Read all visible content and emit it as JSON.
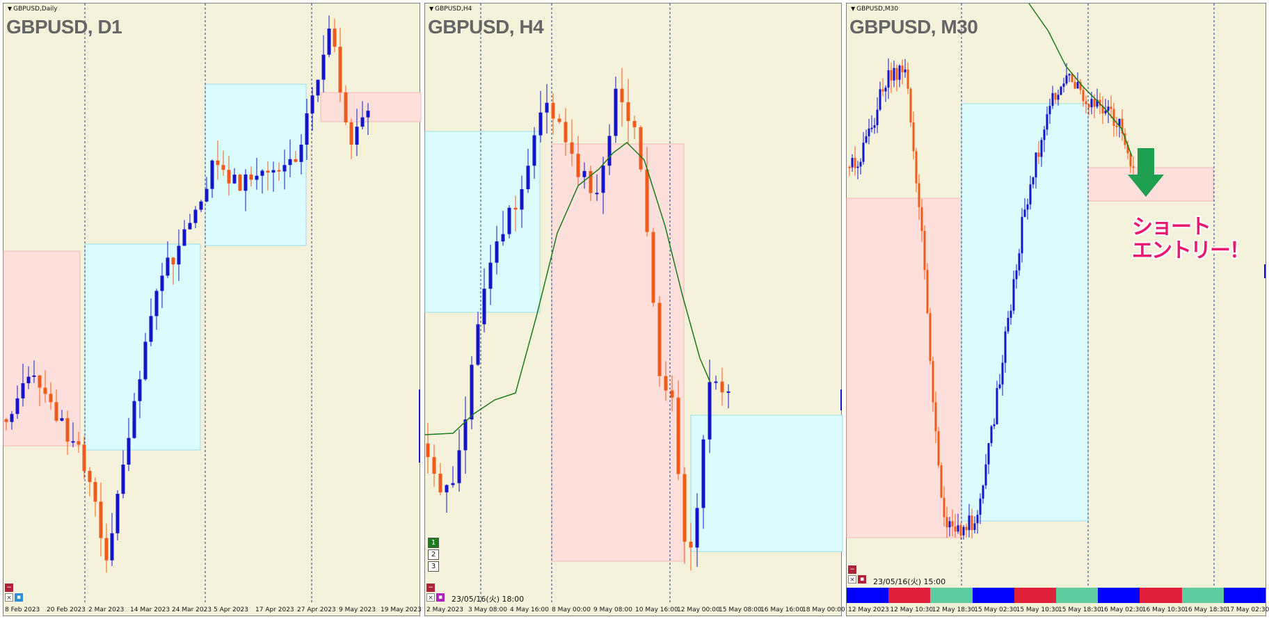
{
  "panels": [
    {
      "symbol_small": "GBPUSD,Daily",
      "title": "GBPUSD, D1",
      "dates": [
        "8 Feb 2023",
        "20 Feb 2023",
        "2 Mar 2023",
        "14 Mar 2023",
        "24 Mar 2023",
        "5 Apr 2023",
        "17 Apr 2023",
        "27 Apr 2023",
        "9 May 2023",
        "19 May 2023"
      ],
      "controls": {
        "minimize": "−",
        "close": "×",
        "settings": "▪"
      }
    },
    {
      "symbol_small": "GBPUSD,H4",
      "title": "GBPUSD, H4",
      "dates": [
        "2 May 2023",
        "3 May 08:00",
        "4 May 16:00",
        "8 May 00:00",
        "9 May 08:00",
        "10 May 16:00",
        "12 May 00:00",
        "15 May 08:00",
        "16 May 16:00",
        "18 May 00:00"
      ],
      "number_buttons": [
        "1",
        "2",
        "3"
      ],
      "timestamp": "23/05/16(火) 18:00",
      "controls": {
        "minimize": "−",
        "close": "×",
        "settings": "▪"
      }
    },
    {
      "symbol_small": "GBPUSD,M30",
      "title": "GBPUSD, M30",
      "dates": [
        "12 May 2023",
        "12 May 10:30",
        "12 May 18:30",
        "15 May 02:30",
        "15 May 10:30",
        "15 May 18:30",
        "16 May 02:30",
        "16 May 10:30",
        "16 May 18:30",
        "17 May 02:30"
      ],
      "timestamp": "23/05/16(火) 15:00",
      "annotation_lines": [
        "ショート",
        "エントリー！"
      ],
      "color_bar": [
        "#0000ff",
        "#e0203a",
        "#5ecba0",
        "#0000ff",
        "#e0203a",
        "#5ecba0",
        "#0000ff",
        "#e0203a",
        "#5ecba0",
        "#0000ff"
      ],
      "controls": {
        "minimize": "−",
        "close": "×",
        "settings": "▪"
      }
    }
  ],
  "colors": {
    "background": "#f5f2dc",
    "bull_candle": "#1414c8",
    "bear_candle": "#f05a1a",
    "pink_zone": "#fde0dc",
    "cyan_zone": "#dcfbfc",
    "moving_average": "#1a7a1a",
    "arrow": "#1ea050",
    "annotation": "#e8196e"
  }
}
